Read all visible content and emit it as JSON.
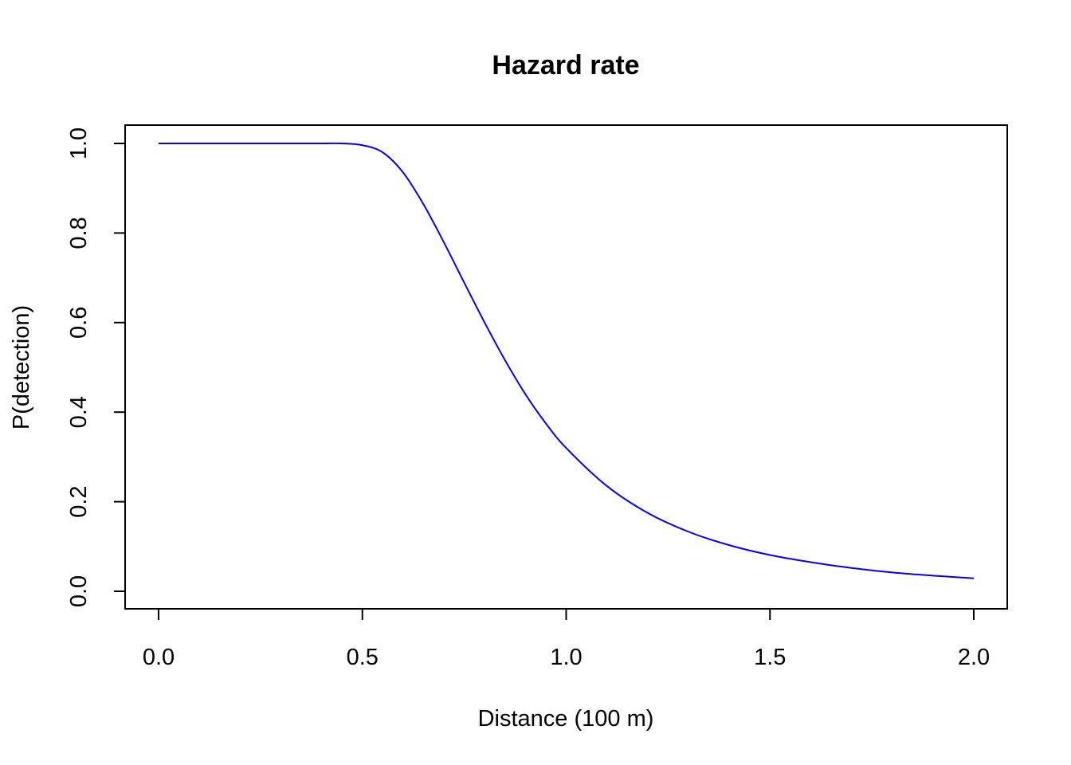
{
  "chart_data": {
    "type": "line",
    "title": "Hazard rate",
    "xlabel": "Distance (100 m)",
    "ylabel": "P(detection)",
    "xlim": [
      0,
      2
    ],
    "ylim": [
      0,
      1
    ],
    "x_ticks": [
      0,
      0.5,
      1,
      1.5,
      2
    ],
    "x_tick_labels": [
      "0.0",
      "0.5",
      "1.0",
      "1.5",
      "2.0"
    ],
    "y_ticks": [
      0,
      0.2,
      0.4,
      0.6,
      0.8,
      1
    ],
    "y_tick_labels": [
      "0.0",
      "0.2",
      "0.4",
      "0.6",
      "0.8",
      "1.0"
    ],
    "grid": false,
    "series": [
      {
        "color": "#0000ff",
        "x": [
          0,
          0.1,
          0.2,
          0.3,
          0.4,
          0.45,
          0.5,
          0.55,
          0.6,
          0.65,
          0.7,
          0.75,
          0.8,
          0.85,
          0.9,
          0.95,
          1.0,
          1.1,
          1.2,
          1.3,
          1.4,
          1.5,
          1.6,
          1.7,
          1.8,
          1.9,
          2.0
        ],
        "y": [
          1.0,
          1.0,
          1.0,
          1.0,
          1.0,
          1.0,
          0.996,
          0.98,
          0.935,
          0.864,
          0.779,
          0.689,
          0.6,
          0.516,
          0.44,
          0.375,
          0.32,
          0.235,
          0.175,
          0.133,
          0.103,
          0.081,
          0.065,
          0.052,
          0.042,
          0.035,
          0.029
        ]
      }
    ]
  }
}
